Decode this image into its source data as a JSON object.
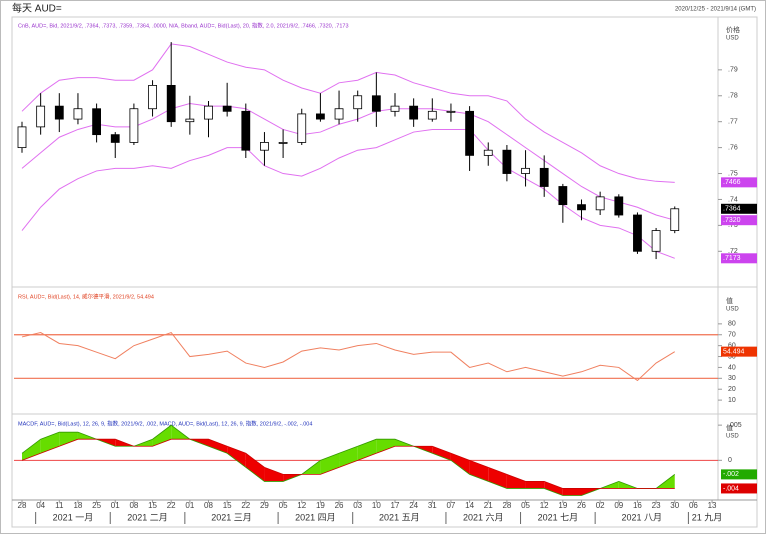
{
  "header": {
    "title": "每天 AUD=",
    "range": "2020/12/25 - 2021/9/14 (GMT)"
  },
  "x_axis": {
    "categories": [
      "28",
      "04",
      "11",
      "18",
      "25",
      "01",
      "08",
      "15",
      "22",
      "01",
      "08",
      "15",
      "22",
      "29",
      "05",
      "12",
      "19",
      "26",
      "03",
      "10",
      "17",
      "24",
      "31",
      "07",
      "14",
      "21",
      "28",
      "05",
      "12",
      "19",
      "26",
      "02",
      "09",
      "16",
      "23",
      "30",
      "06",
      "13"
    ],
    "months": [
      "2021 一月",
      "2021 二月",
      "2021 三月",
      "2021 四月",
      "2021 五月",
      "2021 六月",
      "2021 七月",
      "2021 八月",
      "21 九月"
    ]
  },
  "chart_data": [
    {
      "type": "candlestick",
      "legend": "CnB, AUD=, Bid, 2021/9/2, .7364, .7373, .7359, .7364, .0000, N/A, Bband, AUD=, Bid(Last), 20, 指数, 2.0, 2021/9/2, .7466, .7320, .7173",
      "legend_color": "#9933cc",
      "axis_title": "价格",
      "axis_unit": "USD",
      "up_color": "#ffffff",
      "down_color": "#000000",
      "open": [
        0.76,
        0.768,
        0.776,
        0.771,
        0.775,
        0.765,
        0.762,
        0.775,
        0.784,
        0.77,
        0.771,
        0.776,
        0.774,
        0.759,
        0.762,
        0.762,
        0.773,
        0.771,
        0.775,
        0.78,
        0.774,
        0.776,
        0.771,
        0.774,
        0.774,
        0.757,
        0.759,
        0.75,
        0.752,
        0.745,
        0.738,
        0.736,
        0.741,
        0.734,
        0.72,
        0.728,
        null,
        null
      ],
      "high": [
        0.77,
        0.781,
        0.781,
        0.781,
        0.777,
        0.766,
        0.777,
        0.786,
        0.8007,
        0.78,
        0.778,
        0.785,
        0.777,
        0.766,
        0.767,
        0.775,
        0.781,
        0.782,
        0.782,
        0.789,
        0.781,
        0.779,
        0.779,
        0.777,
        0.776,
        0.762,
        0.761,
        0.759,
        0.757,
        0.746,
        0.74,
        0.743,
        0.742,
        0.735,
        0.729,
        0.7373,
        null,
        null
      ],
      "low": [
        0.758,
        0.765,
        0.766,
        0.769,
        0.762,
        0.756,
        0.761,
        0.772,
        0.768,
        0.765,
        0.764,
        0.772,
        0.756,
        0.753,
        0.756,
        0.761,
        0.77,
        0.769,
        0.77,
        0.768,
        0.772,
        0.768,
        0.77,
        0.77,
        0.751,
        0.753,
        0.747,
        0.745,
        0.741,
        0.731,
        0.732,
        0.734,
        0.733,
        0.719,
        0.717,
        0.727,
        null,
        null
      ],
      "close": [
        0.768,
        0.776,
        0.771,
        0.775,
        0.765,
        0.762,
        0.775,
        0.784,
        0.77,
        0.771,
        0.776,
        0.774,
        0.759,
        0.762,
        0.762,
        0.773,
        0.771,
        0.775,
        0.78,
        0.774,
        0.776,
        0.771,
        0.774,
        0.774,
        0.757,
        0.759,
        0.75,
        0.752,
        0.745,
        0.738,
        0.736,
        0.741,
        0.734,
        0.72,
        0.728,
        0.7364,
        null,
        null
      ],
      "series": [
        {
          "color": "#e070f0",
          "values": [
            0.774,
            0.781,
            0.786,
            0.787,
            0.787,
            0.786,
            0.786,
            0.79,
            0.8,
            0.799,
            0.796,
            0.793,
            0.791,
            0.79,
            0.786,
            0.783,
            0.781,
            0.785,
            0.786,
            0.789,
            0.788,
            0.785,
            0.783,
            0.781,
            0.78,
            0.78,
            0.778,
            0.771,
            0.766,
            0.762,
            0.758,
            0.753,
            0.75,
            0.748,
            0.747,
            0.7466,
            null,
            null
          ]
        },
        {
          "color": "#e070f0",
          "values": [
            0.752,
            0.758,
            0.764,
            0.767,
            0.769,
            0.768,
            0.768,
            0.771,
            0.775,
            0.777,
            0.776,
            0.776,
            0.775,
            0.771,
            0.767,
            0.765,
            0.766,
            0.769,
            0.771,
            0.774,
            0.775,
            0.775,
            0.775,
            0.774,
            0.773,
            0.77,
            0.765,
            0.76,
            0.755,
            0.75,
            0.745,
            0.741,
            0.739,
            0.737,
            0.734,
            0.732,
            null,
            null
          ]
        },
        {
          "color": "#e070f0",
          "values": [
            0.728,
            0.737,
            0.744,
            0.748,
            0.751,
            0.752,
            0.752,
            0.753,
            0.752,
            0.755,
            0.757,
            0.76,
            0.76,
            0.753,
            0.75,
            0.749,
            0.752,
            0.756,
            0.759,
            0.76,
            0.763,
            0.766,
            0.767,
            0.767,
            0.767,
            0.759,
            0.752,
            0.748,
            0.744,
            0.738,
            0.733,
            0.73,
            0.729,
            0.726,
            0.72,
            0.7173,
            null,
            null
          ]
        }
      ],
      "ylim": [
        0.707,
        0.81
      ],
      "yticks": [
        {
          "value": 0.72,
          "label": ".72"
        },
        {
          "value": 0.73,
          "label": ".73"
        },
        {
          "value": 0.74,
          "label": ".74"
        },
        {
          "value": 0.75,
          "label": ".75"
        },
        {
          "value": 0.76,
          "label": ".76"
        },
        {
          "value": 0.77,
          "label": ".77"
        },
        {
          "value": 0.78,
          "label": ".78"
        },
        {
          "value": 0.79,
          "label": ".79"
        }
      ],
      "tags": [
        {
          "value": 0.7466,
          "label": ".7466",
          "color": "#cc44ee"
        },
        {
          "value": 0.7364,
          "label": ".7364",
          "color": "#000000"
        },
        {
          "value": 0.732,
          "label": ".7320",
          "color": "#cc44ee"
        },
        {
          "value": 0.7173,
          "label": ".7173",
          "color": "#cc44ee"
        }
      ]
    },
    {
      "type": "line",
      "legend": "RSI, AUD=, Bid(Last), 14, 威尔德平滑, 2021/9/2, 54.494",
      "legend_color": "#e04020",
      "axis_title": "值",
      "axis_unit": "USD",
      "series": [
        {
          "color": "#f08060",
          "values": [
            68,
            72,
            62,
            60,
            54,
            48,
            60,
            66,
            72,
            50,
            52,
            55,
            44,
            40,
            45,
            55,
            58,
            56,
            60,
            62,
            56,
            52,
            54,
            54,
            40,
            44,
            36,
            40,
            36,
            32,
            36,
            42,
            40,
            28,
            44,
            54.494,
            null,
            null
          ]
        }
      ],
      "levels": [
        70,
        30
      ],
      "level_color": "#f07050",
      "ylim": [
        0,
        112
      ],
      "yticks": [
        10,
        20,
        30,
        40,
        50,
        60,
        70,
        80
      ],
      "tags": [
        {
          "value": 54.494,
          "label": "54.494",
          "color": "#ee3300"
        }
      ]
    },
    {
      "type": "macd",
      "legend": "MACDF, AUD=, Bid(Last), 12, 26, 9, 指数, 2021/9/2, .002, MACD, AUD=, Bid(Last), 12, 26, 9, 指数, 2021/9/2, -.002, -.004",
      "legend_color": "#2233bb",
      "axis_title": "值",
      "axis_unit": "USD",
      "up_color": "#66dd00",
      "down_color": "#ee0000",
      "zero_color": "#ee4444",
      "series": [
        {
          "color": "#339900",
          "values": [
            0.001,
            0.003,
            0.004,
            0.004,
            0.003,
            0.002,
            0.002,
            0.003,
            0.005,
            0.003,
            0.002,
            0.001,
            -0.001,
            -0.003,
            -0.003,
            -0.002,
            0.0,
            0.001,
            0.002,
            0.003,
            0.003,
            0.002,
            0.001,
            0.0,
            -0.002,
            -0.003,
            -0.004,
            -0.004,
            -0.004,
            -0.005,
            -0.005,
            -0.004,
            -0.003,
            -0.004,
            -0.004,
            -0.002,
            null,
            null
          ]
        },
        {
          "color": "#cc0000",
          "values": [
            0.0,
            0.001,
            0.002,
            0.003,
            0.003,
            0.003,
            0.002,
            0.002,
            0.003,
            0.003,
            0.003,
            0.002,
            0.001,
            -0.001,
            -0.002,
            -0.002,
            -0.002,
            -0.001,
            0.0,
            0.001,
            0.002,
            0.002,
            0.002,
            0.001,
            0.0,
            -0.001,
            -0.002,
            -0.003,
            -0.003,
            -0.004,
            -0.004,
            -0.004,
            -0.004,
            -0.004,
            -0.004,
            -0.004,
            null,
            null
          ]
        }
      ],
      "ylim": [
        -0.0055,
        0.0063
      ],
      "yticks": [
        0,
        {
          "value": 0.005,
          "label": ".005"
        }
      ],
      "tags": [
        {
          "value": -0.002,
          "label": "-.002",
          "color": "#22aa00"
        },
        {
          "value": -0.004,
          "label": "-.004",
          "color": "#dd0000"
        }
      ]
    }
  ]
}
